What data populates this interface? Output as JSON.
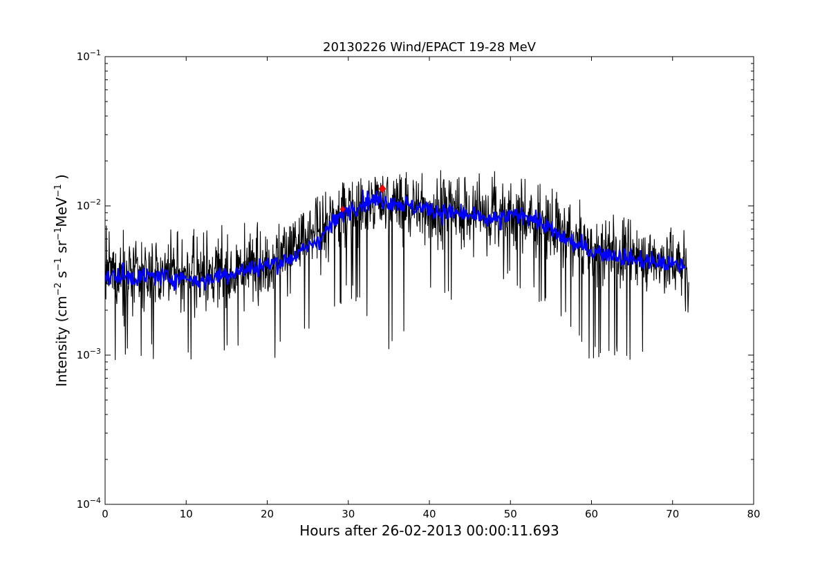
{
  "chart_data": {
    "type": "line",
    "title": "20130226 Wind/EPACT 19-28 MeV",
    "xlabel": "Hours after 26-02-2013 00:00:11.693",
    "ylabel_parts": {
      "main": "Intensity (cm",
      "e1": "−2",
      "s": " s",
      "e2": "−1",
      "sr": " sr",
      "e3": "−1",
      "mev": "MeV",
      "e4": "−1",
      "close": " )"
    },
    "xlim": [
      0,
      80
    ],
    "ylim": [
      0.0001,
      0.1
    ],
    "yscale": "log",
    "x_ticks": [
      0,
      10,
      20,
      30,
      40,
      50,
      60,
      70,
      80
    ],
    "x_tick_labels": [
      "0",
      "10",
      "20",
      "30",
      "40",
      "50",
      "60",
      "70",
      "80"
    ],
    "y_ticks": [
      {
        "value": 0.1,
        "base": "10",
        "exp": "−1"
      },
      {
        "value": 0.01,
        "base": "10",
        "exp": "−2"
      },
      {
        "value": 0.001,
        "base": "10",
        "exp": "−3"
      },
      {
        "value": 0.0001,
        "base": "10",
        "exp": "−4"
      }
    ],
    "grid": false,
    "series": [
      {
        "role": "raw",
        "color": "#000000",
        "x_range": [
          0,
          72
        ],
        "envelope": [
          {
            "x": 0,
            "low": 0.0009,
            "typ": 0.0035,
            "high": 0.0085
          },
          {
            "x": 5,
            "low": 0.0009,
            "typ": 0.0035,
            "high": 0.007
          },
          {
            "x": 10,
            "low": 0.0009,
            "typ": 0.0033,
            "high": 0.007
          },
          {
            "x": 15,
            "low": 0.0009,
            "typ": 0.0036,
            "high": 0.0075
          },
          {
            "x": 20,
            "low": 0.0009,
            "typ": 0.0042,
            "high": 0.008
          },
          {
            "x": 25,
            "low": 0.0012,
            "typ": 0.006,
            "high": 0.011
          },
          {
            "x": 30,
            "low": 0.0025,
            "typ": 0.0095,
            "high": 0.015
          },
          {
            "x": 35,
            "low": 0.0009,
            "typ": 0.0105,
            "high": 0.016
          },
          {
            "x": 40,
            "low": 0.0025,
            "typ": 0.0095,
            "high": 0.018
          },
          {
            "x": 45,
            "low": 0.0018,
            "typ": 0.0085,
            "high": 0.016
          },
          {
            "x": 50,
            "low": 0.003,
            "typ": 0.009,
            "high": 0.019
          },
          {
            "x": 55,
            "low": 0.002,
            "typ": 0.007,
            "high": 0.014
          },
          {
            "x": 60,
            "low": 0.0009,
            "typ": 0.0052,
            "high": 0.01
          },
          {
            "x": 65,
            "low": 0.0009,
            "typ": 0.0045,
            "high": 0.008
          },
          {
            "x": 70,
            "low": 0.0009,
            "typ": 0.0042,
            "high": 0.0075
          },
          {
            "x": 72,
            "low": 0.0018,
            "typ": 0.004,
            "high": 0.007
          }
        ]
      },
      {
        "role": "smoothed",
        "color": "#0000ff",
        "x": [
          0,
          2,
          4,
          6,
          8,
          10,
          12,
          14,
          16,
          18,
          20,
          22,
          24,
          26,
          28,
          30,
          32,
          34,
          36,
          38,
          40,
          42,
          44,
          46,
          48,
          50,
          52,
          54,
          56,
          58,
          60,
          62,
          64,
          66,
          68,
          70,
          71.5
        ],
        "y": [
          0.0033,
          0.0034,
          0.0033,
          0.0034,
          0.0033,
          0.0033,
          0.0031,
          0.0034,
          0.0036,
          0.0038,
          0.004,
          0.0043,
          0.0048,
          0.0058,
          0.0075,
          0.0095,
          0.0108,
          0.011,
          0.0105,
          0.0098,
          0.0095,
          0.009,
          0.0088,
          0.0083,
          0.008,
          0.0085,
          0.0088,
          0.0075,
          0.0063,
          0.0055,
          0.005,
          0.0048,
          0.0045,
          0.0043,
          0.0042,
          0.004,
          0.004
        ]
      }
    ],
    "markers": [
      {
        "x": 29.3,
        "y": 0.0095,
        "color": "#ff0000",
        "shape": "diamond",
        "size": "small"
      },
      {
        "x": 34.2,
        "y": 0.013,
        "color": "#ff0000",
        "shape": "diamond",
        "size": "large"
      }
    ]
  }
}
